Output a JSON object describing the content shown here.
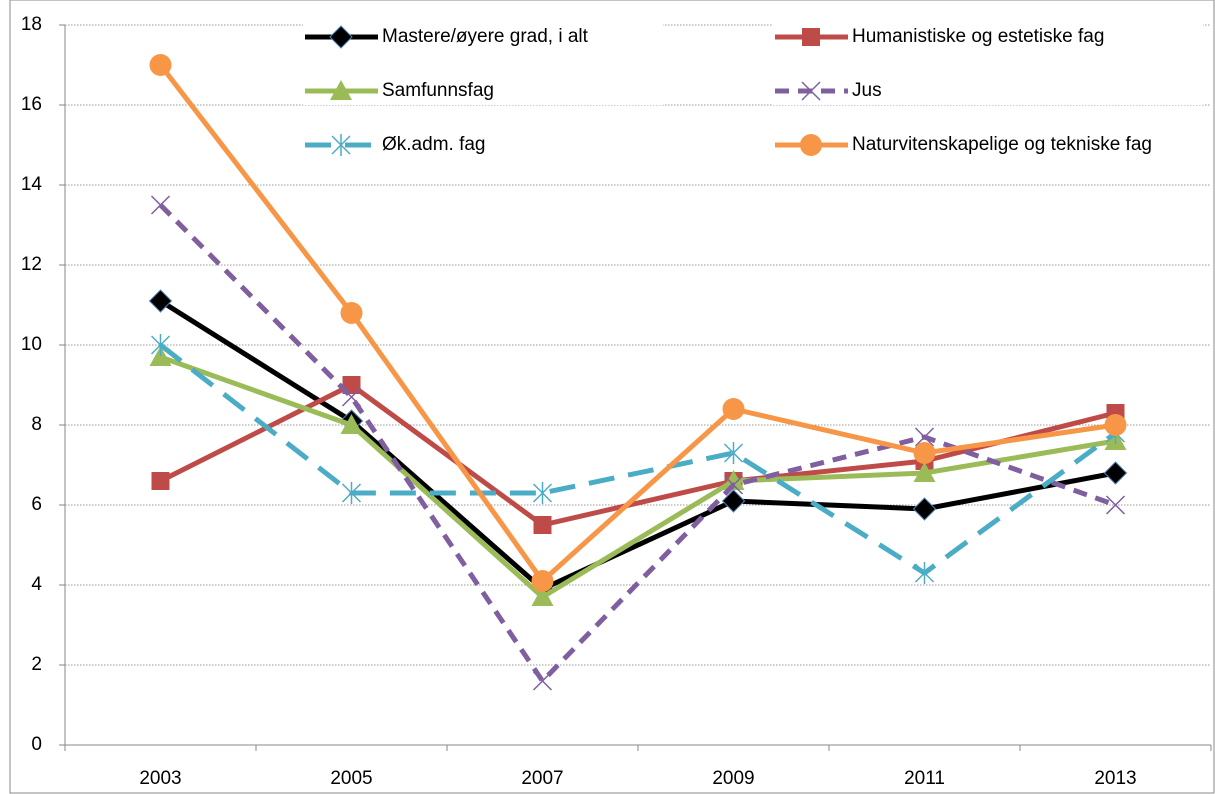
{
  "chart_data": {
    "type": "line",
    "categories": [
      "2003",
      "2005",
      "2007",
      "2009",
      "2011",
      "2013"
    ],
    "series": [
      {
        "name": "Mastere/øyere grad, i alt",
        "color": "#000000",
        "marker": "diamond",
        "dash": "solid",
        "values": [
          11.1,
          8.1,
          3.9,
          6.1,
          5.9,
          6.8
        ]
      },
      {
        "name": "Humanistiske og estetiske fag",
        "color": "#be4b48",
        "marker": "square",
        "dash": "solid",
        "values": [
          6.6,
          9.0,
          5.5,
          6.6,
          7.1,
          8.3
        ]
      },
      {
        "name": "Samfunnsfag",
        "color": "#9bbb59",
        "marker": "triangle",
        "dash": "solid",
        "values": [
          9.7,
          8.0,
          3.7,
          6.6,
          6.8,
          7.6
        ]
      },
      {
        "name": "Jus",
        "color": "#7f5f9f",
        "marker": "x",
        "dash": "dashed",
        "values": [
          13.5,
          8.7,
          1.6,
          6.5,
          7.7,
          6.0
        ]
      },
      {
        "name": "Øk.adm. fag",
        "color": "#4bacc6",
        "marker": "star",
        "dash": "longdash",
        "values": [
          10.0,
          6.3,
          6.3,
          7.3,
          4.3,
          7.8
        ]
      },
      {
        "name": "Naturvitenskapelige og tekniske fag",
        "color": "#f79646",
        "marker": "circle",
        "dash": "solid",
        "values": [
          17.0,
          10.8,
          4.1,
          8.4,
          7.3,
          8.0
        ]
      }
    ],
    "ylim": [
      0,
      18
    ],
    "yticks": [
      0,
      2,
      4,
      6,
      8,
      10,
      12,
      14,
      16,
      18
    ],
    "grid": true
  }
}
